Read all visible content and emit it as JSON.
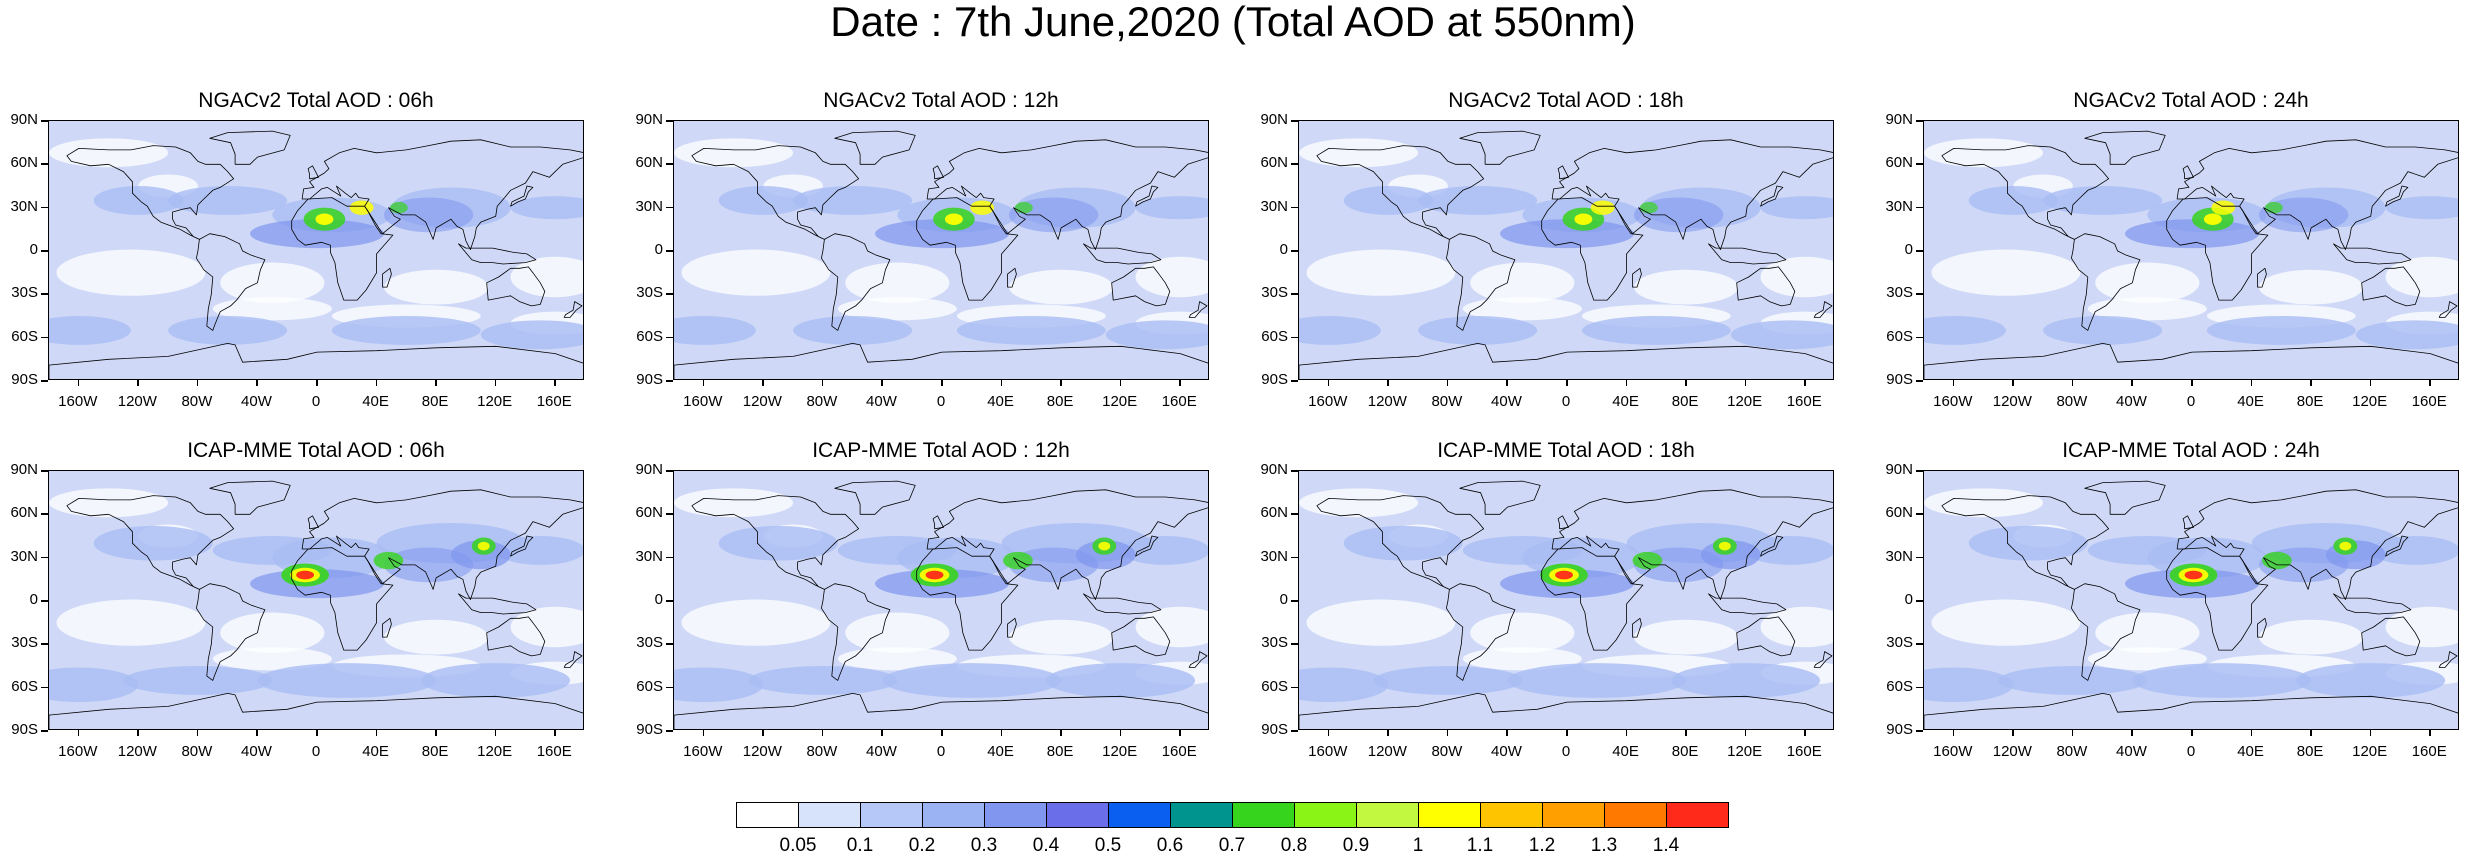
{
  "title": "Date : 7th June,2020 (Total AOD at 550nm)",
  "lat_labels": [
    "90N",
    "60N",
    "30N",
    "0",
    "30S",
    "60S",
    "90S"
  ],
  "lon_labels": [
    "160W",
    "120W",
    "80W",
    "40W",
    "0",
    "40E",
    "80E",
    "120E",
    "160E"
  ],
  "panels": [
    {
      "title": "NGACv2 Total AOD : 06h",
      "model": "NGACv2",
      "forecast_hour": "06h"
    },
    {
      "title": "NGACv2 Total AOD : 12h",
      "model": "NGACv2",
      "forecast_hour": "12h"
    },
    {
      "title": "NGACv2 Total AOD : 18h",
      "model": "NGACv2",
      "forecast_hour": "18h"
    },
    {
      "title": "NGACv2 Total AOD : 24h",
      "model": "NGACv2",
      "forecast_hour": "24h"
    },
    {
      "title": "ICAP-MME Total AOD : 06h",
      "model": "ICAP-MME",
      "forecast_hour": "06h"
    },
    {
      "title": "ICAP-MME Total AOD : 12h",
      "model": "ICAP-MME",
      "forecast_hour": "12h"
    },
    {
      "title": "ICAP-MME Total AOD : 18h",
      "model": "ICAP-MME",
      "forecast_hour": "18h"
    },
    {
      "title": "ICAP-MME Total AOD : 24h",
      "model": "ICAP-MME",
      "forecast_hour": "24h"
    }
  ],
  "colorbar": {
    "labels": [
      "0.05",
      "0.1",
      "0.2",
      "0.3",
      "0.4",
      "0.5",
      "0.6",
      "0.7",
      "0.8",
      "0.9",
      "1",
      "1.1",
      "1.2",
      "1.3",
      "1.4"
    ],
    "colors": [
      "#ffffff",
      "#d7e3fb",
      "#b5c8f7",
      "#9bb2f3",
      "#8197ef",
      "#6a6ee8",
      "#0a5ef0",
      "#00948f",
      "#36d41c",
      "#8af417",
      "#c2f840",
      "#ffff00",
      "#ffc400",
      "#ffa000",
      "#ff7800",
      "#ff2a1a"
    ]
  },
  "map_colors": {
    "ocean_light": "#ffffff",
    "background_aod": "#cfd9f7",
    "moderate_aod": "#a9bdf4",
    "high_aod": "#7f95ee",
    "dust_green": "#36d41c",
    "dust_yellow": "#ffff00",
    "dust_red": "#ff2a1a",
    "coastline": "#000000"
  }
}
